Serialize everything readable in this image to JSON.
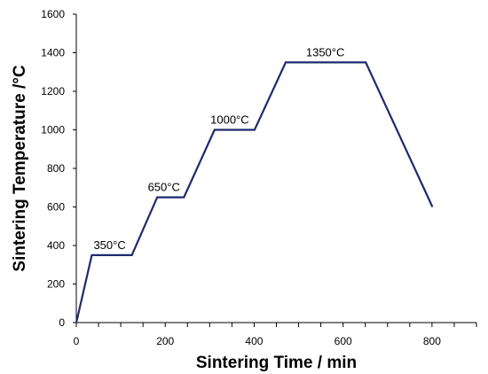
{
  "chart_data": {
    "type": "line",
    "xlabel": "Sintering Time  /  min",
    "ylabel": "Sintering Temperature /°C",
    "xlim": [
      0,
      900
    ],
    "ylim": [
      0,
      1600
    ],
    "x_ticks": [
      0,
      200,
      400,
      600,
      800
    ],
    "y_ticks": [
      0,
      200,
      400,
      600,
      800,
      1000,
      1200,
      1400,
      1600
    ],
    "x_minor_step": 50,
    "grid": false,
    "series": [
      {
        "x": [
          0,
          35,
          125,
          182,
          242,
          311,
          401,
          471,
          651,
          801
        ],
        "y": [
          0,
          350,
          350,
          650,
          650,
          1000,
          1000,
          1350,
          1350,
          600
        ],
        "color": "#1f2a6e"
      }
    ],
    "annotations": [
      {
        "text": "350°C",
        "x": 75,
        "y": 350
      },
      {
        "text": "650°C",
        "x": 197,
        "y": 650
      },
      {
        "text": "1000°C",
        "x": 345,
        "y": 1000
      },
      {
        "text": "1350°C",
        "x": 560,
        "y": 1350
      }
    ]
  }
}
